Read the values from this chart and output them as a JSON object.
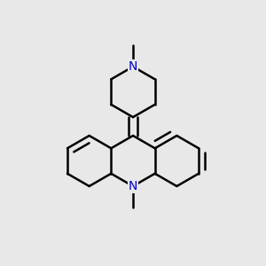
{
  "bg_color": "#e8e8e8",
  "bond_color": "#000000",
  "N_color": "#0000cc",
  "line_width": 1.8,
  "dbo": 0.012
}
